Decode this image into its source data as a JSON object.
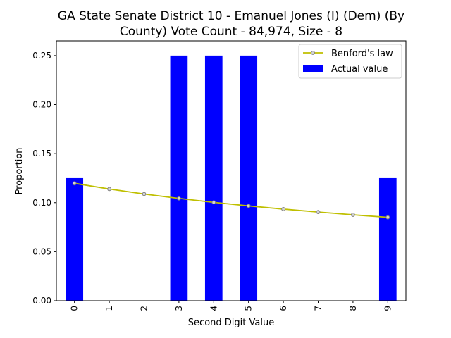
{
  "chart_data": {
    "type": "bar",
    "title_lines": [
      "GA State Senate District 10 - Emanuel Jones (I) (Dem) (By",
      "County) Vote Count - 84,974, Size - 8"
    ],
    "xlabel": "Second Digit Value",
    "ylabel": "Proportion",
    "categories": [
      "0",
      "1",
      "2",
      "3",
      "4",
      "5",
      "6",
      "7",
      "8",
      "9"
    ],
    "ylim": [
      0,
      0.265
    ],
    "yticks": [
      0.0,
      0.05,
      0.1,
      0.15,
      0.2,
      0.25
    ],
    "ytick_labels": [
      "0.00",
      "0.05",
      "0.10",
      "0.15",
      "0.20",
      "0.25"
    ],
    "series": [
      {
        "name": "Actual value",
        "type": "bar",
        "color": "#0000ff",
        "values": [
          0.125,
          0,
          0,
          0.25,
          0.25,
          0.25,
          0,
          0,
          0,
          0.125
        ]
      },
      {
        "name": "Benford's law",
        "type": "line",
        "color": "#bfbf00",
        "marker_face": "#d3d3d3",
        "marker_edge": "#808080",
        "values": [
          0.1197,
          0.1139,
          0.1088,
          0.1043,
          0.1003,
          0.0967,
          0.0934,
          0.0904,
          0.0876,
          0.085
        ]
      }
    ],
    "legend": {
      "position": "top-right",
      "entries": [
        "Benford's law",
        "Actual value"
      ]
    },
    "grid": false
  }
}
